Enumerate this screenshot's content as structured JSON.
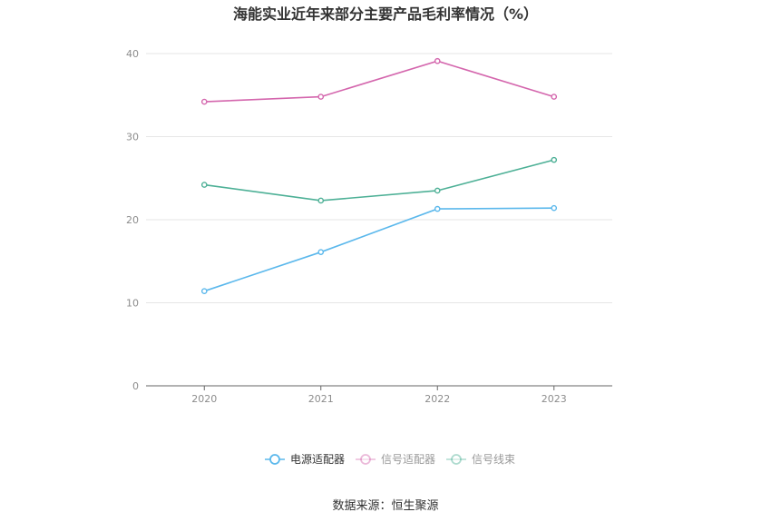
{
  "chart_data": {
    "type": "line",
    "title": "海能实业近年来部分主要产品毛利率情况（%）",
    "categories": [
      "2020",
      "2021",
      "2022",
      "2023"
    ],
    "series": [
      {
        "name": "电源适配器",
        "color": "#5bb8ec",
        "values": [
          11.4,
          16.1,
          21.3,
          21.4
        ]
      },
      {
        "name": "信号适配器",
        "color": "#d466ad",
        "values": [
          34.2,
          34.8,
          39.1,
          34.8
        ]
      },
      {
        "name": "信号线束",
        "color": "#4db096",
        "values": [
          24.2,
          22.3,
          23.5,
          27.2
        ]
      }
    ],
    "ylim": [
      0,
      40
    ],
    "yticks": [
      0,
      10,
      20,
      30,
      40
    ],
    "grid": true,
    "legend": "bottom-center"
  },
  "source": "数据来源：恒生聚源"
}
